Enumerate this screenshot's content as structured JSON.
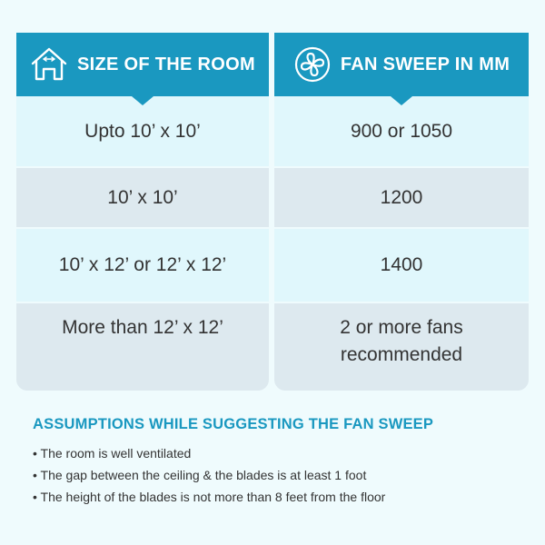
{
  "headers": {
    "room": "SIZE OF THE ROOM",
    "fan": "FAN SWEEP IN MM",
    "room_icon": "house-icon",
    "fan_icon": "fan-icon"
  },
  "rows": [
    {
      "room": "Upto 10’ x 10’",
      "fan": "900 or 1050"
    },
    {
      "room": "10’ x 10’",
      "fan": "1200"
    },
    {
      "room": "10’ x 12’ or 12’ x 12’",
      "fan": "1400"
    },
    {
      "room": "More than 12’ x 12’",
      "fan": "2 or more fans recommended"
    }
  ],
  "notes": {
    "title": "ASSUMPTIONS WHILE SUGGESTING THE FAN SWEEP",
    "items": [
      "The room is well ventilated",
      "The gap between the ceiling & the blades is at least 1 foot",
      "The height of the blades is not more than 8 feet from the floor"
    ]
  },
  "colors": {
    "header": "#1a98c0",
    "row_light": "#e0f7fc",
    "row_gray": "#dde9ef",
    "background": "#effbfd"
  }
}
